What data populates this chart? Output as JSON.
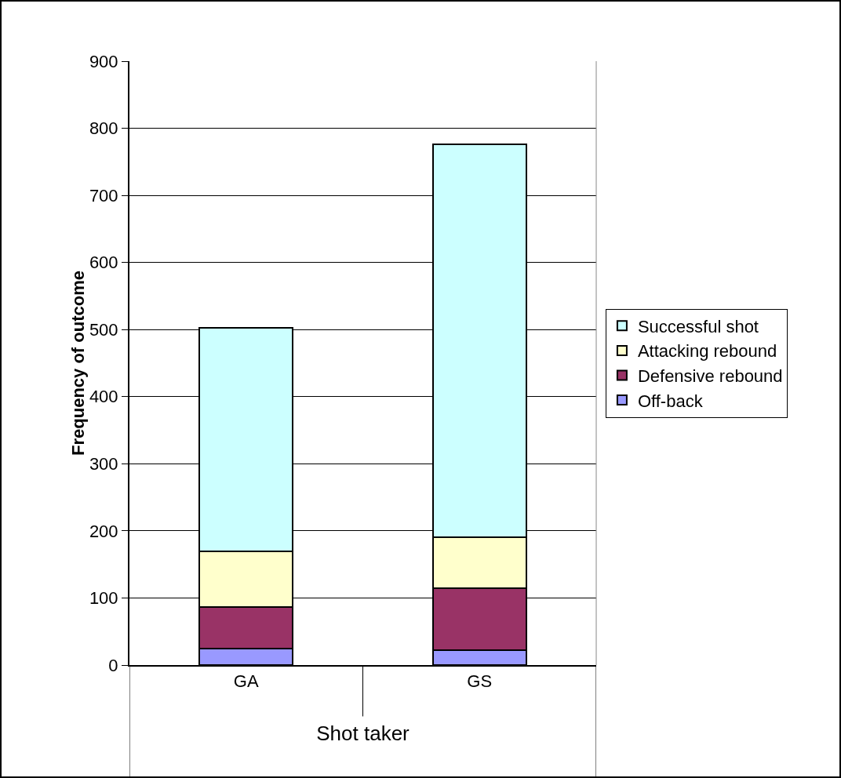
{
  "chart_data": {
    "type": "bar",
    "stacked": true,
    "xlabel": "Shot taker",
    "ylabel": "Frequency of outcome",
    "categories": [
      "GA",
      "GS"
    ],
    "series": [
      {
        "name": "Off-back",
        "color": "#9999ff",
        "values": [
          25,
          22
        ]
      },
      {
        "name": "Defensive rebound",
        "color": "#993366",
        "values": [
          62,
          92
        ]
      },
      {
        "name": "Attacking rebound",
        "color": "#ffffcc",
        "values": [
          82,
          77
        ]
      },
      {
        "name": "Successful shot",
        "color": "#ccffff",
        "values": [
          334,
          585
        ]
      }
    ],
    "ylim": [
      0,
      900
    ],
    "yticks": [
      0,
      100,
      200,
      300,
      400,
      500,
      600,
      700,
      800,
      900
    ],
    "grid": "y",
    "legend": "right"
  }
}
